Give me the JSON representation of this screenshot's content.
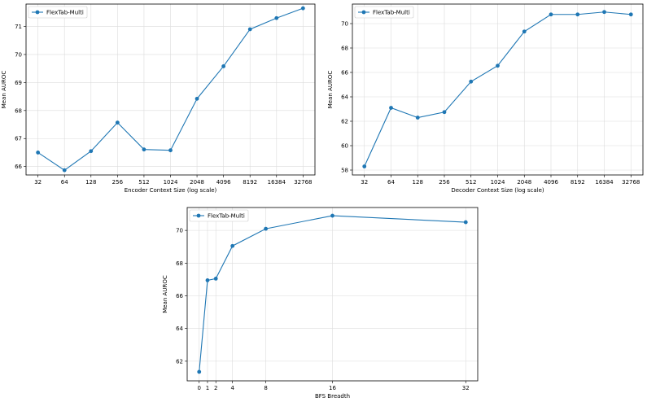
{
  "chart_data": [
    {
      "type": "line",
      "xlabel": "Encoder Context Size (log scale)",
      "ylabel": "Mean AUROC",
      "xscale": "log2",
      "x": [
        32,
        64,
        128,
        256,
        512,
        1024,
        2048,
        4096,
        8192,
        16384,
        32768
      ],
      "xticks": [
        "32",
        "64",
        "128",
        "256",
        "512",
        "1024",
        "2048",
        "4096",
        "8192",
        "16384",
        "32768"
      ],
      "yticks": [
        66,
        67,
        68,
        69,
        70,
        71
      ],
      "ylim": [
        65.7,
        71.8
      ],
      "grid": true,
      "legend": "top-left",
      "series": [
        {
          "name": "FlexTab-Multi",
          "color": "#1f77b4",
          "values": [
            66.5,
            65.87,
            66.55,
            67.57,
            66.61,
            66.58,
            68.42,
            69.58,
            70.9,
            71.3,
            71.65
          ]
        }
      ]
    },
    {
      "type": "line",
      "xlabel": "Decoder Context Size (log scale)",
      "ylabel": "Mean AUROC",
      "xscale": "log2",
      "x": [
        32,
        64,
        128,
        256,
        512,
        1024,
        2048,
        4096,
        8192,
        16384,
        32768
      ],
      "xticks": [
        "32",
        "64",
        "128",
        "256",
        "512",
        "1024",
        "2048",
        "4096",
        "8192",
        "16384",
        "32768"
      ],
      "yticks": [
        58,
        60,
        62,
        64,
        66,
        68,
        70
      ],
      "ylim": [
        57.6,
        71.6
      ],
      "grid": true,
      "legend": "top-left",
      "series": [
        {
          "name": "FlexTab-Multi",
          "color": "#1f77b4",
          "values": [
            58.3,
            63.1,
            62.3,
            62.75,
            65.25,
            66.55,
            69.35,
            70.75,
            70.75,
            70.95,
            70.75
          ]
        }
      ]
    },
    {
      "type": "line",
      "xlabel": "BFS Breadth",
      "ylabel": "Mean AUROC",
      "xscale": "linear",
      "x": [
        0,
        1,
        2,
        4,
        8,
        16,
        32
      ],
      "xticks": [
        "0",
        "1",
        "2",
        "4",
        "8",
        "16",
        "32"
      ],
      "yticks": [
        62,
        64,
        66,
        68,
        70
      ],
      "ylim": [
        60.8,
        71.4
      ],
      "grid": true,
      "legend": "top-left",
      "series": [
        {
          "name": "FlexTab-Multi",
          "color": "#1f77b4",
          "values": [
            61.35,
            66.95,
            67.05,
            69.05,
            70.1,
            70.9,
            70.5
          ]
        }
      ]
    }
  ]
}
